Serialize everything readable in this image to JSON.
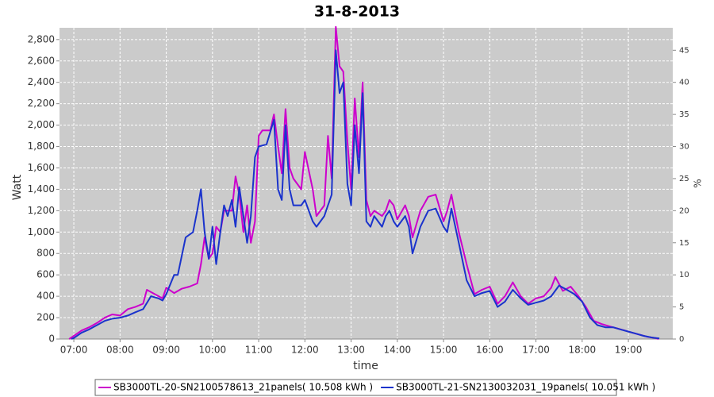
{
  "chart_data": {
    "type": "line",
    "title": "31-8-2013",
    "xlabel": "time",
    "ylabel": "Watt",
    "y2label": "%",
    "xlim": [
      6.69,
      19.96
    ],
    "xticks": [
      {
        "value": 7,
        "label": "07:00"
      },
      {
        "value": 8,
        "label": "08:00"
      },
      {
        "value": 9,
        "label": "09:00"
      },
      {
        "value": 10,
        "label": "10:00"
      },
      {
        "value": 11,
        "label": "11:00"
      },
      {
        "value": 12,
        "label": "12:00"
      },
      {
        "value": 13,
        "label": "13:00"
      },
      {
        "value": 14,
        "label": "14:00"
      },
      {
        "value": 15,
        "label": "15:00"
      },
      {
        "value": 16,
        "label": "16:00"
      },
      {
        "value": 17,
        "label": "17:00"
      },
      {
        "value": 18,
        "label": "18:00"
      },
      {
        "value": 19,
        "label": "19:00"
      }
    ],
    "ylim": [
      0,
      2910
    ],
    "yticks": [
      0,
      200,
      400,
      600,
      800,
      {
        "value": 1000,
        "label": "1,000"
      },
      {
        "value": 1200,
        "label": "1,200"
      },
      {
        "value": 1400,
        "label": "1,400"
      },
      {
        "value": 1600,
        "label": "1,600"
      },
      {
        "value": 1800,
        "label": "1,800"
      },
      {
        "value": 2000,
        "label": "2,000"
      },
      {
        "value": 2200,
        "label": "2,200"
      },
      {
        "value": 2400,
        "label": "2,400"
      },
      {
        "value": 2600,
        "label": "2,600"
      },
      {
        "value": 2800,
        "label": "2,800"
      }
    ],
    "y2lim": [
      0,
      48.5
    ],
    "y2ticks": [
      0,
      5,
      10,
      15,
      20,
      25,
      30,
      35,
      40,
      45
    ],
    "grid": true,
    "legend": "bottom",
    "series": [
      {
        "name": "SB3000TL-20-SN2100578613_21panels( 10.508 kWh  )",
        "color": "#cc00cc",
        "x": [
          6.9,
          7.0,
          7.17,
          7.33,
          7.5,
          7.67,
          7.83,
          8.0,
          8.17,
          8.33,
          8.5,
          8.58,
          8.75,
          8.92,
          9.0,
          9.17,
          9.33,
          9.5,
          9.67,
          9.75,
          9.83,
          9.92,
          10.0,
          10.08,
          10.17,
          10.25,
          10.42,
          10.5,
          10.58,
          10.67,
          10.75,
          10.83,
          10.92,
          11.0,
          11.08,
          11.25,
          11.33,
          11.42,
          11.5,
          11.58,
          11.67,
          11.75,
          11.92,
          12.0,
          12.17,
          12.25,
          12.42,
          12.5,
          12.58,
          12.67,
          12.75,
          12.83,
          12.92,
          13.0,
          13.08,
          13.17,
          13.25,
          13.33,
          13.42,
          13.5,
          13.67,
          13.75,
          13.83,
          13.92,
          14.0,
          14.17,
          14.25,
          14.33,
          14.5,
          14.67,
          14.83,
          15.0,
          15.08,
          15.17,
          15.33,
          15.5,
          15.67,
          15.83,
          16.0,
          16.17,
          16.33,
          16.5,
          16.67,
          16.83,
          17.0,
          17.17,
          17.33,
          17.42,
          17.58,
          17.75,
          17.92,
          18.08,
          18.25,
          18.42,
          18.58,
          18.75,
          18.92,
          19.08,
          19.25,
          19.42,
          19.58,
          19.65
        ],
        "values": [
          0,
          30,
          80,
          110,
          150,
          200,
          230,
          220,
          280,
          300,
          330,
          460,
          420,
          380,
          480,
          430,
          470,
          490,
          520,
          700,
          950,
          750,
          800,
          1050,
          1000,
          1200,
          1200,
          1520,
          1350,
          1000,
          1250,
          900,
          1100,
          1900,
          1950,
          1950,
          2100,
          1800,
          1550,
          2150,
          1600,
          1500,
          1400,
          1750,
          1400,
          1150,
          1250,
          1900,
          1500,
          2920,
          2550,
          2500,
          1850,
          1400,
          2250,
          1700,
          2400,
          1300,
          1150,
          1200,
          1150,
          1200,
          1300,
          1250,
          1120,
          1250,
          1150,
          950,
          1200,
          1330,
          1350,
          1100,
          1200,
          1350,
          1000,
          700,
          420,
          460,
          490,
          330,
          400,
          530,
          400,
          330,
          380,
          400,
          480,
          580,
          450,
          490,
          400,
          300,
          170,
          140,
          120,
          100,
          80,
          60,
          40,
          20,
          10,
          0
        ]
      },
      {
        "name": "SB3000TL-21-SN2130032031_19panels( 10.051 kWh  )",
        "color": "#1a33cc",
        "x": [
          6.95,
          7.0,
          7.17,
          7.33,
          7.5,
          7.67,
          7.83,
          8.0,
          8.17,
          8.33,
          8.5,
          8.67,
          8.83,
          8.92,
          9.0,
          9.17,
          9.25,
          9.42,
          9.58,
          9.67,
          9.75,
          9.83,
          9.92,
          10.0,
          10.08,
          10.17,
          10.25,
          10.33,
          10.42,
          10.5,
          10.58,
          10.67,
          10.75,
          10.83,
          10.92,
          11.0,
          11.17,
          11.33,
          11.42,
          11.5,
          11.58,
          11.67,
          11.75,
          11.92,
          12.0,
          12.17,
          12.25,
          12.42,
          12.5,
          12.58,
          12.67,
          12.75,
          12.83,
          12.92,
          13.0,
          13.08,
          13.17,
          13.25,
          13.33,
          13.42,
          13.5,
          13.67,
          13.75,
          13.83,
          13.92,
          14.0,
          14.17,
          14.25,
          14.33,
          14.5,
          14.67,
          14.83,
          15.0,
          15.08,
          15.17,
          15.33,
          15.5,
          15.67,
          15.83,
          16.0,
          16.17,
          16.33,
          16.5,
          16.67,
          16.83,
          17.0,
          17.17,
          17.33,
          17.5,
          17.67,
          17.83,
          18.0,
          18.17,
          18.33,
          18.5,
          18.67,
          18.83,
          19.0,
          19.17,
          19.33,
          19.5,
          19.67
        ],
        "values": [
          0,
          10,
          60,
          90,
          130,
          170,
          190,
          200,
          220,
          250,
          280,
          400,
          380,
          360,
          420,
          600,
          600,
          950,
          1000,
          1200,
          1400,
          1000,
          750,
          1050,
          700,
          1000,
          1250,
          1150,
          1300,
          1050,
          1420,
          1150,
          900,
          1150,
          1700,
          1800,
          1820,
          2050,
          1400,
          1300,
          2000,
          1400,
          1250,
          1250,
          1300,
          1100,
          1050,
          1150,
          1250,
          1350,
          2700,
          2300,
          2400,
          1450,
          1250,
          2000,
          1550,
          2300,
          1100,
          1050,
          1150,
          1050,
          1150,
          1200,
          1100,
          1050,
          1150,
          1050,
          800,
          1050,
          1200,
          1220,
          1050,
          1000,
          1220,
          900,
          550,
          400,
          430,
          450,
          300,
          350,
          460,
          380,
          320,
          340,
          360,
          400,
          500,
          460,
          420,
          350,
          200,
          130,
          110,
          110,
          90,
          70,
          50,
          30,
          15,
          5
        ]
      }
    ]
  }
}
